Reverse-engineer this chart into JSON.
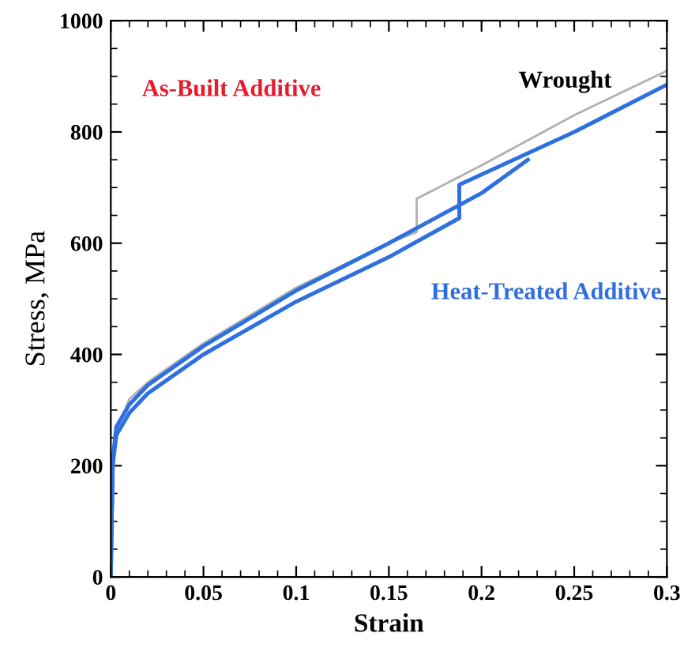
{
  "chart_data": {
    "type": "line",
    "xlabel": "Strain",
    "ylabel": "Stress, MPa",
    "xlim": [
      0,
      0.3
    ],
    "ylim": [
      0,
      1000
    ],
    "xticks": [
      0,
      0.05,
      0.1,
      0.15,
      0.2,
      0.25,
      0.3
    ],
    "yticks": [
      0,
      200,
      400,
      600,
      800,
      1000
    ],
    "grid": false,
    "marker": "none",
    "line_style": "solid",
    "series": [
      {
        "color": "#b0b0b0",
        "x": [
          0,
          0.002,
          0.01,
          0.02,
          0.05,
          0.1,
          0.15,
          0.165,
          0.165,
          0.2,
          0.25,
          0.3
        ],
        "values": [
          0,
          250,
          320,
          350,
          420,
          520,
          600,
          620,
          680,
          740,
          830,
          910
        ]
      },
      {
        "color": "#2f6fe0",
        "x": [
          0,
          0.001,
          0.003,
          0.01,
          0.02,
          0.05,
          0.1,
          0.15,
          0.2,
          0.225
        ],
        "values": [
          0,
          210,
          270,
          310,
          345,
          415,
          515,
          600,
          690,
          750
        ]
      },
      {
        "color": "#2f6fe0",
        "x": [
          0,
          0.001,
          0.003,
          0.01,
          0.02,
          0.05,
          0.1,
          0.15,
          0.188,
          0.188,
          0.25,
          0.3
        ],
        "values": [
          0,
          200,
          255,
          295,
          330,
          400,
          495,
          575,
          645,
          705,
          800,
          885
        ]
      }
    ],
    "annotations": [
      "As-Built Additive",
      "Wrought",
      "Heat-Treated Additive"
    ]
  }
}
